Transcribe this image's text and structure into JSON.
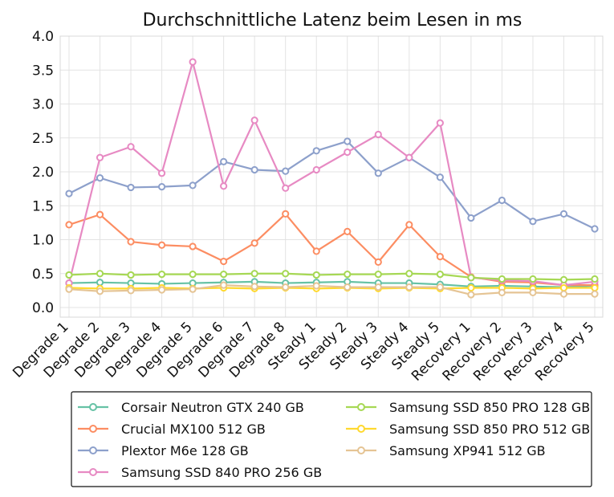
{
  "chart_data": {
    "type": "line",
    "title": "Durchschnittliche Latenz beim Lesen in ms",
    "xlabel": "",
    "ylabel": "",
    "ylim": [
      0,
      4.0
    ],
    "yticks": [
      "0.0",
      "0.5",
      "1.0",
      "1.5",
      "2.0",
      "2.5",
      "3.0",
      "3.5",
      "4.0"
    ],
    "grid": true,
    "legend_position": "bottom",
    "categories": [
      "Degrade 1",
      "Degrade 2",
      "Degrade 3",
      "Degrade 4",
      "Degrade 5",
      "Degrade 6",
      "Degrade 7",
      "Degrade 8",
      "Steady 1",
      "Steady 2",
      "Steady 3",
      "Steady 4",
      "Steady 5",
      "Recovery 1",
      "Recovery 2",
      "Recovery 3",
      "Recovery 4",
      "Recovery 5"
    ],
    "series": [
      {
        "name": "Corsair Neutron GTX 240 GB",
        "color": "#66c2a5",
        "values": [
          0.36,
          0.37,
          0.36,
          0.35,
          0.36,
          0.37,
          0.38,
          0.36,
          0.37,
          0.38,
          0.36,
          0.36,
          0.34,
          0.31,
          0.32,
          0.31,
          0.3,
          0.32
        ]
      },
      {
        "name": "Crucial MX100 512 GB",
        "color": "#fc8d62",
        "values": [
          1.22,
          1.37,
          0.97,
          0.92,
          0.9,
          0.68,
          0.95,
          1.38,
          0.83,
          1.12,
          0.67,
          1.22,
          0.75,
          0.45,
          0.38,
          0.37,
          0.33,
          0.33
        ]
      },
      {
        "name": "Plextor M6e 128 GB",
        "color": "#8da0cb",
        "values": [
          1.68,
          1.91,
          1.77,
          1.78,
          1.8,
          2.15,
          2.03,
          2.01,
          2.31,
          2.45,
          1.98,
          2.21,
          1.92,
          1.32,
          1.58,
          1.27,
          1.38,
          1.16
        ]
      },
      {
        "name": "Samsung SSD 840 PRO 256 GB",
        "color": "#e78ac3",
        "values": [
          0.36,
          2.21,
          2.37,
          1.98,
          3.62,
          1.79,
          2.76,
          1.76,
          2.03,
          2.29,
          2.55,
          2.21,
          2.72,
          0.44,
          0.4,
          0.39,
          0.33,
          0.38
        ]
      },
      {
        "name": "Samsung SSD 850 PRO 128 GB",
        "color": "#a6d854",
        "values": [
          0.48,
          0.5,
          0.48,
          0.49,
          0.49,
          0.49,
          0.5,
          0.5,
          0.48,
          0.49,
          0.49,
          0.5,
          0.49,
          0.44,
          0.42,
          0.42,
          0.41,
          0.42
        ]
      },
      {
        "name": "Samsung SSD 850 PRO 512 GB",
        "color": "#ffd92f",
        "values": [
          0.29,
          0.28,
          0.28,
          0.29,
          0.28,
          0.29,
          0.28,
          0.29,
          0.28,
          0.29,
          0.28,
          0.29,
          0.28,
          0.29,
          0.29,
          0.28,
          0.29,
          0.29
        ]
      },
      {
        "name": "Samsung XP941 512 GB",
        "color": "#e5c494",
        "values": [
          0.27,
          0.24,
          0.25,
          0.26,
          0.27,
          0.33,
          0.31,
          0.3,
          0.32,
          0.3,
          0.3,
          0.3,
          0.3,
          0.19,
          0.22,
          0.22,
          0.2,
          0.2
        ]
      }
    ]
  }
}
